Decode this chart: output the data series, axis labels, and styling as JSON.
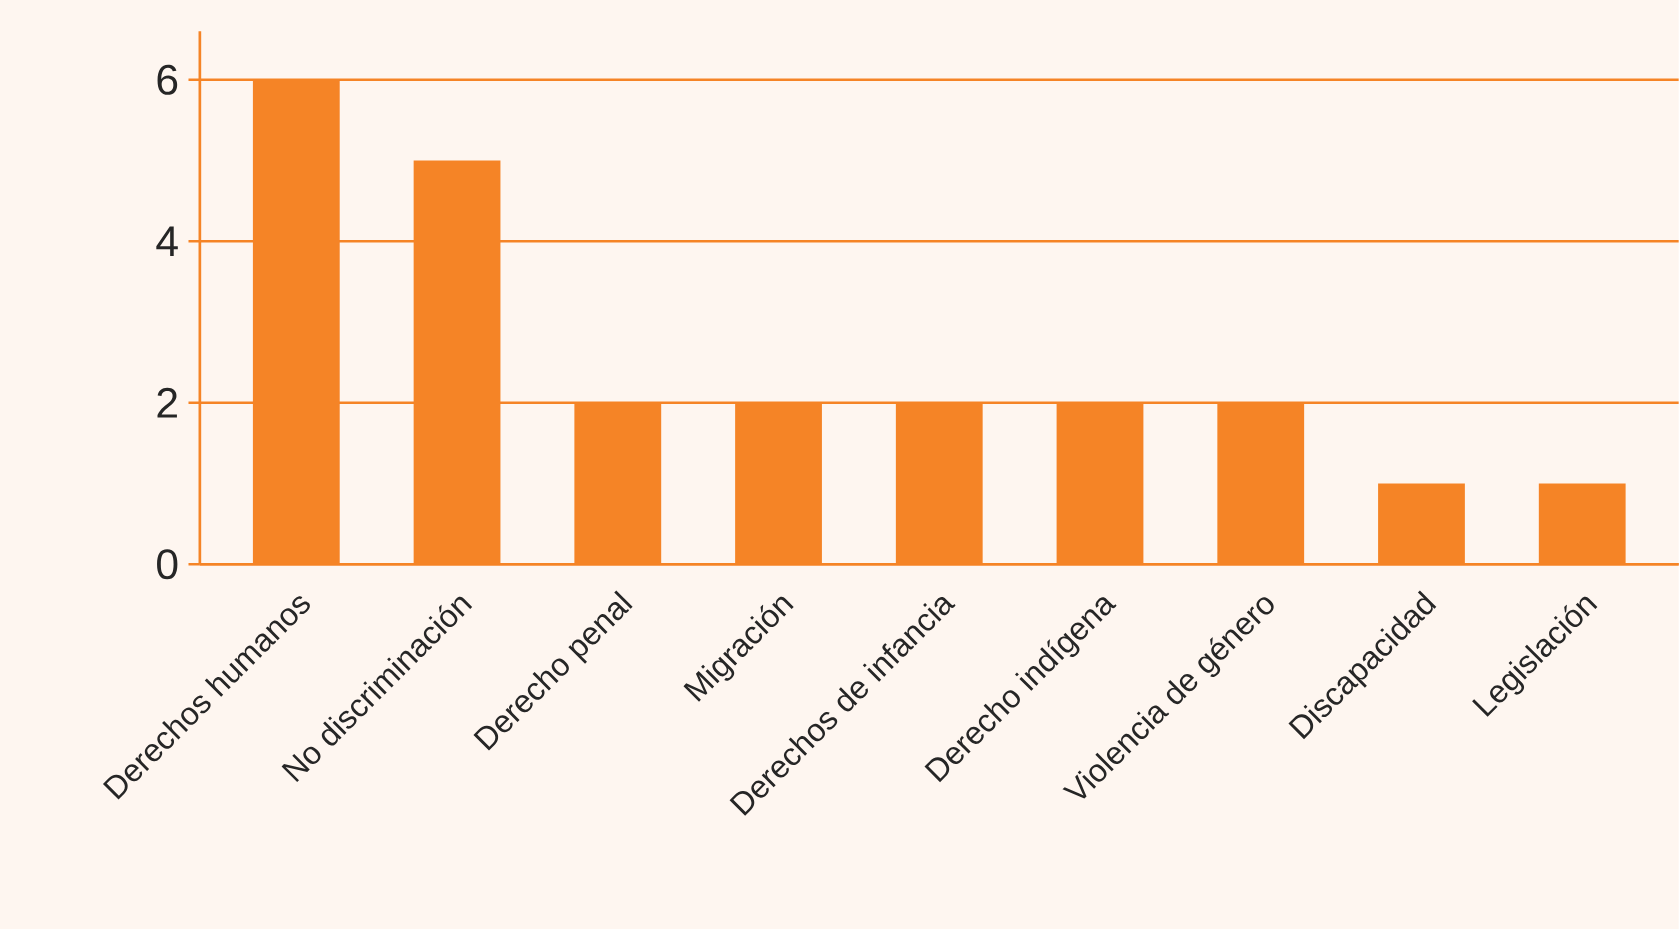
{
  "chart_data": {
    "type": "bar",
    "categories": [
      "Derechos humanos",
      "No discriminación",
      "Derecho penal",
      "Migración",
      "Derechos de infancia",
      "Derecho indígena",
      "Violencia de género",
      "Discapacidad",
      "Legislación"
    ],
    "values": [
      6,
      5,
      2,
      2,
      2,
      2,
      2,
      1,
      1
    ],
    "color": "#f58426",
    "ylim": [
      0,
      6.6
    ],
    "yticks": [
      0,
      2,
      4,
      6
    ],
    "grid": "y"
  }
}
